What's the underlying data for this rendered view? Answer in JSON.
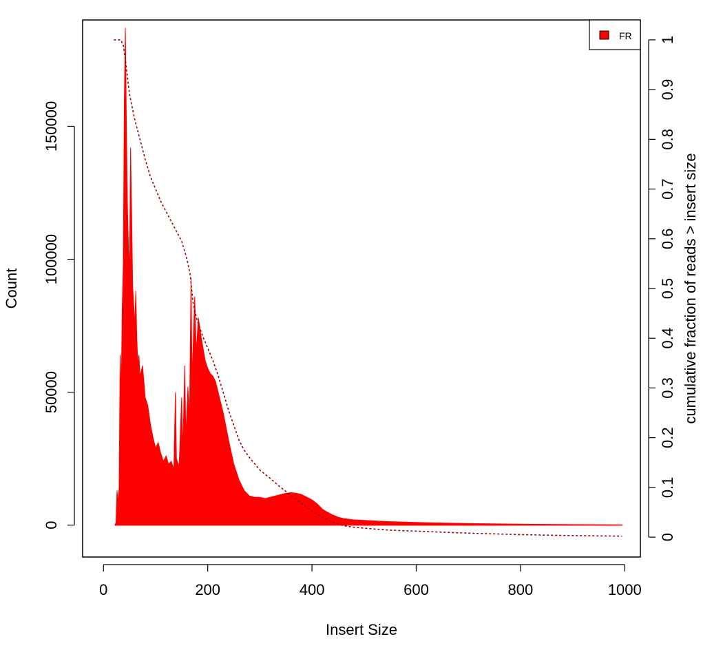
{
  "chart_data": {
    "type": "area",
    "xlabel": "Insert Size",
    "ylabel": "Count",
    "y2label": "cumulative fraction of reads > insert size",
    "xlim": [
      -40,
      1030
    ],
    "ylim": [
      -12000,
      190000
    ],
    "y2lim": [
      -0.04,
      1.04
    ],
    "x_ticks": [
      0,
      200,
      400,
      600,
      800,
      1000
    ],
    "y_ticks": [
      0,
      50000,
      100000,
      150000
    ],
    "y2_ticks": [
      0,
      0.1,
      0.2,
      0.3,
      0.4,
      0.5,
      0.6,
      0.7,
      0.8,
      0.9,
      1
    ],
    "y2_tick_labels": [
      "0",
      "0.1",
      "0.2",
      "0.3",
      "0.4",
      "0.5",
      "0.6",
      "0.7",
      "0.8",
      "0.9",
      "1"
    ],
    "grid": false,
    "legend": {
      "position": "top-right",
      "entries": [
        {
          "label": "FR",
          "color": "#ff0000"
        }
      ]
    },
    "series": [
      {
        "name": "FR",
        "kind": "histogram",
        "color": "#ff0000",
        "points": [
          [
            22,
            0
          ],
          [
            24,
            1000
          ],
          [
            26,
            13000
          ],
          [
            28,
            9000
          ],
          [
            30,
            14000
          ],
          [
            32,
            64000
          ],
          [
            34,
            48000
          ],
          [
            36,
            82000
          ],
          [
            38,
            98000
          ],
          [
            40,
            160000
          ],
          [
            42,
            187000
          ],
          [
            44,
            150000
          ],
          [
            46,
            120000
          ],
          [
            48,
            104000
          ],
          [
            50,
            96000
          ],
          [
            52,
            142000
          ],
          [
            54,
            118000
          ],
          [
            56,
            90000
          ],
          [
            58,
            83000
          ],
          [
            60,
            75000
          ],
          [
            62,
            88000
          ],
          [
            64,
            70000
          ],
          [
            66,
            60000
          ],
          [
            68,
            64000
          ],
          [
            70,
            56000
          ],
          [
            75,
            60000
          ],
          [
            80,
            48000
          ],
          [
            85,
            45000
          ],
          [
            90,
            38000
          ],
          [
            95,
            33000
          ],
          [
            100,
            29000
          ],
          [
            105,
            31000
          ],
          [
            110,
            27000
          ],
          [
            115,
            24000
          ],
          [
            120,
            26000
          ],
          [
            125,
            23000
          ],
          [
            130,
            24000
          ],
          [
            135,
            21000
          ],
          [
            138,
            50000
          ],
          [
            140,
            25000
          ],
          [
            145,
            22000
          ],
          [
            150,
            48000
          ],
          [
            152,
            27000
          ],
          [
            156,
            60000
          ],
          [
            158,
            33000
          ],
          [
            162,
            52000
          ],
          [
            165,
            40000
          ],
          [
            168,
            93000
          ],
          [
            170,
            55000
          ],
          [
            175,
            86000
          ],
          [
            178,
            65000
          ],
          [
            182,
            78000
          ],
          [
            188,
            70000
          ],
          [
            195,
            62000
          ],
          [
            200,
            59000
          ],
          [
            205,
            57000
          ],
          [
            210,
            56000
          ],
          [
            215,
            54000
          ],
          [
            220,
            50000
          ],
          [
            230,
            42000
          ],
          [
            240,
            32000
          ],
          [
            250,
            23000
          ],
          [
            260,
            17000
          ],
          [
            270,
            13000
          ],
          [
            280,
            11000
          ],
          [
            290,
            10500
          ],
          [
            300,
            10500
          ],
          [
            310,
            10000
          ],
          [
            320,
            10500
          ],
          [
            330,
            11000
          ],
          [
            340,
            11500
          ],
          [
            350,
            12000
          ],
          [
            360,
            12200
          ],
          [
            370,
            12000
          ],
          [
            380,
            11500
          ],
          [
            390,
            10500
          ],
          [
            400,
            9500
          ],
          [
            410,
            8000
          ],
          [
            420,
            6000
          ],
          [
            430,
            4800
          ],
          [
            440,
            3800
          ],
          [
            450,
            3000
          ],
          [
            460,
            2500
          ],
          [
            480,
            2000
          ],
          [
            500,
            1800
          ],
          [
            550,
            1300
          ],
          [
            600,
            1000
          ],
          [
            650,
            800
          ],
          [
            700,
            600
          ],
          [
            800,
            350
          ],
          [
            900,
            200
          ],
          [
            995,
            120
          ]
        ]
      },
      {
        "name": "cumulative",
        "kind": "line",
        "axis": "right",
        "color": "#990000",
        "dash": true,
        "points": [
          [
            20,
            1.0
          ],
          [
            33,
            1.0
          ],
          [
            38,
            0.99
          ],
          [
            42,
            0.96
          ],
          [
            50,
            0.89
          ],
          [
            60,
            0.84
          ],
          [
            70,
            0.8
          ],
          [
            80,
            0.76
          ],
          [
            90,
            0.725
          ],
          [
            100,
            0.7
          ],
          [
            110,
            0.675
          ],
          [
            120,
            0.655
          ],
          [
            130,
            0.635
          ],
          [
            140,
            0.615
          ],
          [
            150,
            0.595
          ],
          [
            160,
            0.56
          ],
          [
            166,
            0.53
          ],
          [
            172,
            0.47
          ],
          [
            180,
            0.435
          ],
          [
            190,
            0.405
          ],
          [
            200,
            0.38
          ],
          [
            210,
            0.355
          ],
          [
            220,
            0.325
          ],
          [
            230,
            0.29
          ],
          [
            240,
            0.255
          ],
          [
            250,
            0.225
          ],
          [
            260,
            0.195
          ],
          [
            270,
            0.175
          ],
          [
            280,
            0.16
          ],
          [
            300,
            0.135
          ],
          [
            320,
            0.118
          ],
          [
            340,
            0.1
          ],
          [
            360,
            0.084
          ],
          [
            380,
            0.068
          ],
          [
            400,
            0.052
          ],
          [
            420,
            0.04
          ],
          [
            440,
            0.03
          ],
          [
            460,
            0.023
          ],
          [
            480,
            0.02
          ],
          [
            500,
            0.018
          ],
          [
            550,
            0.014
          ],
          [
            600,
            0.012
          ],
          [
            700,
            0.008
          ],
          [
            800,
            0.005
          ],
          [
            900,
            0.003
          ],
          [
            995,
            0.002
          ]
        ]
      }
    ]
  }
}
